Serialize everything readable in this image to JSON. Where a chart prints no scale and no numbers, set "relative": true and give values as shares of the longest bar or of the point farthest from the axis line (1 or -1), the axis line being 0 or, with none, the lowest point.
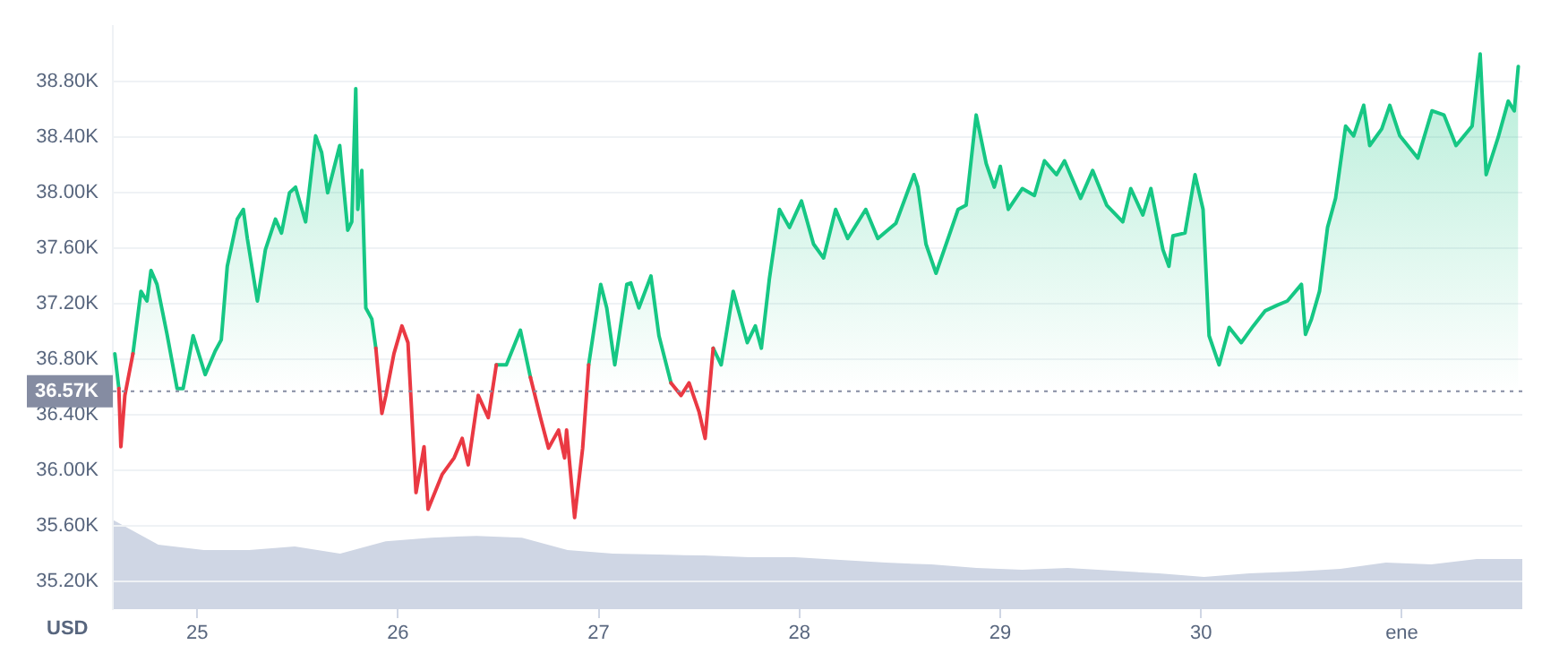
{
  "chart_data": [
    {
      "type": "line",
      "ylabel": "USD",
      "xlim": [
        24.58,
        31.6
      ],
      "xticks": [
        25,
        26,
        27,
        28,
        29,
        30,
        {
          "value": 31,
          "label": "ene"
        }
      ],
      "ylim": [
        35.0,
        39.2
      ],
      "yticks": [
        {
          "value": 35.2,
          "label": "35.20K"
        },
        {
          "value": 35.6,
          "label": "35.60K"
        },
        {
          "value": 36.0,
          "label": "36.00K"
        },
        {
          "value": 36.4,
          "label": "36.40K"
        },
        {
          "value": 36.8,
          "label": "36.80K"
        },
        {
          "value": 37.2,
          "label": "37.20K"
        },
        {
          "value": 37.6,
          "label": "37.60K"
        },
        {
          "value": 38.0,
          "label": "38.00K"
        },
        {
          "value": 38.4,
          "label": "38.40K"
        },
        {
          "value": 38.8,
          "label": "38.80K"
        }
      ],
      "grid": "y",
      "ref_lines": [
        {
          "axis": "y",
          "value": 36.57,
          "label": "36.57K",
          "color": "#858ca2",
          "line_style": "dotted"
        }
      ],
      "series": [
        {
          "type": "area",
          "color": "#16c784",
          "x": [
            24.59,
            24.61,
            24.62,
            24.64,
            24.68,
            24.72,
            24.75,
            24.77,
            24.8,
            24.85,
            24.9,
            24.93,
            24.98,
            25.04,
            25.09,
            25.12,
            25.15,
            25.2,
            25.23,
            25.25,
            25.3,
            25.34,
            25.39,
            25.42,
            25.46,
            25.49,
            25.54,
            25.59,
            25.62,
            25.65,
            25.71,
            25.75,
            25.77,
            25.79,
            25.8,
            25.82,
            25.84,
            25.87,
            25.89,
            25.92,
            25.94,
            25.98,
            26.02,
            26.05,
            26.07,
            26.09,
            26.13,
            26.15,
            26.22,
            26.28,
            26.32,
            26.35,
            26.4,
            26.45,
            26.49,
            26.54,
            26.61,
            26.66,
            26.71,
            26.75,
            26.8,
            26.83,
            26.84,
            26.88,
            26.92,
            26.95,
            27.01,
            27.04,
            27.08,
            27.14,
            27.16,
            27.2,
            27.26,
            27.3,
            27.36,
            27.41,
            27.45,
            27.5,
            27.53,
            27.57,
            27.61,
            27.67,
            27.74,
            27.78,
            27.81,
            27.85,
            27.9,
            27.95,
            28.01,
            28.07,
            28.12,
            28.18,
            28.24,
            28.33,
            28.39,
            28.48,
            28.57,
            28.59,
            28.63,
            28.68,
            28.74,
            28.79,
            28.83,
            28.88,
            28.93,
            28.97,
            29.0,
            29.04,
            29.11,
            29.17,
            29.22,
            29.28,
            29.32,
            29.4,
            29.46,
            29.53,
            29.61,
            29.65,
            29.71,
            29.75,
            29.81,
            29.84,
            29.86,
            29.92,
            29.97,
            30.01,
            30.04,
            30.09,
            30.14,
            30.2,
            30.26,
            30.32,
            30.38,
            30.43,
            30.5,
            30.52,
            30.55,
            30.59,
            30.63,
            30.67,
            30.72,
            30.76,
            30.81,
            30.84,
            30.9,
            30.94,
            30.99,
            31.08,
            31.15,
            31.21,
            31.27,
            31.35,
            31.39,
            31.42,
            31.48,
            31.53,
            31.56,
            31.58
          ],
          "values": [
            36.84,
            36.59,
            null,
            null,
            36.84,
            37.29,
            37.22,
            37.44,
            37.34,
            36.98,
            36.59,
            36.59,
            36.97,
            36.69,
            36.86,
            36.94,
            37.47,
            37.81,
            37.88,
            37.67,
            37.22,
            37.59,
            37.81,
            37.71,
            38.0,
            38.04,
            37.79,
            38.41,
            38.29,
            38.0,
            38.34,
            37.73,
            37.79,
            38.75,
            37.88,
            38.16,
            37.17,
            37.09,
            36.88,
            null,
            null,
            null,
            null,
            null,
            null,
            null,
            null,
            null,
            null,
            null,
            null,
            null,
            null,
            null,
            36.76,
            36.76,
            37.01,
            36.67,
            null,
            null,
            null,
            null,
            null,
            null,
            null,
            36.76,
            37.34,
            37.17,
            36.76,
            37.34,
            37.35,
            37.17,
            37.4,
            36.97,
            36.63,
            null,
            null,
            null,
            null,
            36.88,
            36.76,
            37.29,
            36.92,
            37.04,
            36.88,
            37.38,
            37.88,
            37.75,
            37.94,
            37.63,
            37.53,
            37.88,
            37.67,
            37.88,
            37.67,
            37.78,
            38.13,
            38.04,
            37.63,
            37.42,
            37.67,
            37.88,
            37.91,
            38.56,
            38.21,
            38.04,
            38.19,
            37.88,
            38.03,
            37.98,
            38.23,
            38.13,
            38.23,
            37.96,
            38.16,
            37.91,
            37.79,
            38.03,
            37.84,
            38.03,
            37.59,
            37.47,
            37.69,
            37.71,
            38.13,
            37.88,
            36.97,
            36.76,
            37.03,
            36.92,
            37.04,
            37.15,
            37.19,
            37.22,
            37.34,
            36.98,
            37.09,
            37.29,
            37.75,
            37.96,
            38.48,
            38.41,
            38.63,
            38.34,
            38.46,
            38.63,
            38.41,
            38.25,
            38.59,
            38.56,
            38.34,
            38.48,
            39.0,
            38.13,
            38.4,
            38.66,
            38.59,
            38.91
          ]
        },
        {
          "type": "line",
          "color": "#ea3943",
          "x": [
            24.61,
            24.62,
            24.64,
            24.68,
            25.0,
            25.89,
            25.92,
            25.94,
            25.98,
            26.02,
            26.05,
            26.07,
            26.09,
            26.13,
            26.15,
            26.22,
            26.28,
            26.32,
            26.35,
            26.4,
            26.45,
            26.49,
            26.6,
            26.66,
            26.71,
            26.75,
            26.8,
            26.83,
            26.84,
            26.88,
            26.92,
            26.95,
            27.2,
            27.36,
            27.41,
            27.45,
            27.5,
            27.53,
            27.57
          ],
          "values": [
            36.59,
            36.17,
            36.54,
            36.84,
            null,
            36.88,
            36.41,
            36.54,
            36.84,
            37.04,
            36.92,
            36.38,
            35.84,
            36.17,
            35.72,
            35.97,
            36.09,
            36.23,
            36.04,
            36.54,
            36.38,
            36.76,
            null,
            36.67,
            36.38,
            36.16,
            36.29,
            36.09,
            36.29,
            35.66,
            36.16,
            36.76,
            null,
            36.63,
            36.54,
            36.63,
            36.42,
            36.23,
            36.88
          ]
        }
      ]
    },
    {
      "type": "area",
      "relative": true,
      "color": "#cfd6e4",
      "categories": [
        null,
        null,
        null,
        null,
        null,
        null,
        null,
        null,
        null,
        null,
        null,
        null,
        null,
        null,
        null,
        null,
        null,
        null,
        null,
        null,
        null,
        null,
        null,
        null,
        null,
        null,
        null,
        null,
        null,
        null,
        null,
        null
      ],
      "values": [
        1.0,
        0.72,
        0.66,
        0.66,
        0.7,
        0.62,
        0.76,
        0.8,
        0.82,
        0.8,
        0.66,
        0.62,
        0.61,
        0.6,
        0.58,
        0.58,
        0.55,
        0.52,
        0.5,
        0.46,
        0.44,
        0.46,
        0.43,
        0.4,
        0.36,
        0.4,
        0.42,
        0.45,
        0.52,
        0.5,
        0.56,
        0.56
      ]
    }
  ]
}
